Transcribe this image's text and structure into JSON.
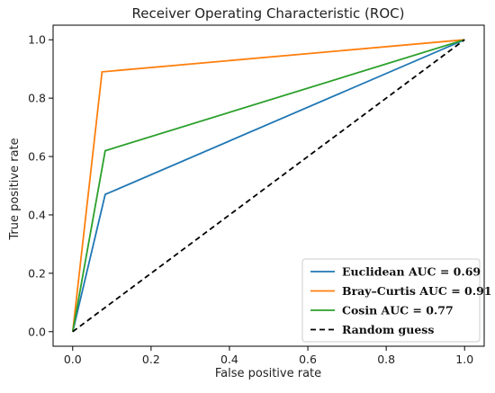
{
  "chart_data": {
    "type": "line",
    "title": "Receiver Operating Characteristic (ROC)",
    "xlabel": "False positive rate",
    "ylabel": "True positive rate",
    "xlim": [
      -0.05,
      1.05
    ],
    "ylim": [
      -0.05,
      1.05
    ],
    "xticks": [
      0.0,
      0.2,
      0.4,
      0.6,
      0.8,
      1.0
    ],
    "yticks": [
      0.0,
      0.2,
      0.4,
      0.6,
      0.8,
      1.0
    ],
    "xtick_labels": [
      "0.0",
      "0.2",
      "0.4",
      "0.6",
      "0.8",
      "1.0"
    ],
    "ytick_labels": [
      "0.0",
      "0.2",
      "0.4",
      "0.6",
      "0.8",
      "1.0"
    ],
    "grid": false,
    "legend_position": "lower-right",
    "series": [
      {
        "name": "Euclidean AUC = 0.69",
        "color": "#1f77b4",
        "dash": "solid",
        "x": [
          0.0,
          0.083,
          1.0
        ],
        "y": [
          0.0,
          0.47,
          1.0
        ]
      },
      {
        "name": "Bray–Curtis AUC = 0.91",
        "color": "#ff7f0e",
        "dash": "solid",
        "x": [
          0.0,
          0.075,
          1.0
        ],
        "y": [
          0.0,
          0.89,
          1.0
        ]
      },
      {
        "name": "Cosin AUC = 0.77",
        "color": "#2ca02c",
        "dash": "solid",
        "x": [
          0.0,
          0.083,
          1.0
        ],
        "y": [
          0.0,
          0.62,
          1.0
        ]
      },
      {
        "name": "Random guess",
        "color": "#000000",
        "dash": "dashed",
        "x": [
          0.0,
          1.0
        ],
        "y": [
          0.0,
          1.0
        ]
      }
    ]
  }
}
